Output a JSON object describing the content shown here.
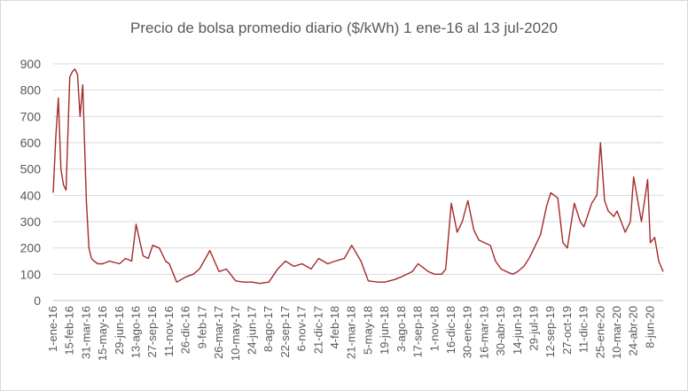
{
  "chart_data": {
    "type": "line",
    "title": "Precio de bolsa promedio diario ($/kWh) 1 ene-16 al 13 jul-2020",
    "xlabel": "",
    "ylabel": "",
    "ylim": [
      0,
      900
    ],
    "yticks": [
      0,
      100,
      200,
      300,
      400,
      500,
      600,
      700,
      800,
      900
    ],
    "grid": "horizontal",
    "legend": "none",
    "line_color": "#a52a2a",
    "x_tick_labels": [
      "1-ene-16",
      "15-feb-16",
      "31-mar-16",
      "15-may-16",
      "29-jun-16",
      "13-ago-16",
      "27-sep-16",
      "11-nov-16",
      "26-dic-16",
      "9-feb-17",
      "26-mar-17",
      "10-may-17",
      "24-jun-17",
      "8-ago-17",
      "22-sep-17",
      "6-nov-17",
      "21-dic-17",
      "4-feb-18",
      "21-mar-18",
      "5-may-18",
      "19-jun-18",
      "3-ago-18",
      "17-sep-18",
      "1-nov-18",
      "16-dic-18",
      "30-ene-19",
      "16-mar-19",
      "30-abr-19",
      "14-jun-19",
      "29-jul-19",
      "12-sep-19",
      "27-oct-19",
      "11-dic-19",
      "25-ene-20",
      "10-mar-20",
      "24-abr-20",
      "8-jun-20"
    ],
    "series": [
      {
        "x": [
          "1-ene-16",
          "8-ene-16",
          "15-ene-16",
          "22-ene-16",
          "29-ene-16",
          "5-feb-16",
          "15-feb-16",
          "22-feb-16",
          "29-feb-16",
          "7-mar-16",
          "14-mar-16",
          "21-mar-16",
          "31-mar-16",
          "7-abr-16",
          "14-abr-16",
          "21-abr-16",
          "1-may-16",
          "15-may-16",
          "1-jun-16",
          "15-jun-16",
          "29-jun-16",
          "15-jul-16",
          "1-ago-16",
          "13-ago-16",
          "1-sep-16",
          "15-sep-16",
          "27-sep-16",
          "15-oct-16",
          "1-nov-16",
          "11-nov-16",
          "1-dic-16",
          "26-dic-16",
          "15-ene-17",
          "1-feb-17",
          "9-feb-17",
          "1-mar-17",
          "26-mar-17",
          "15-abr-17",
          "10-may-17",
          "1-jun-17",
          "24-jun-17",
          "15-jul-17",
          "8-ago-17",
          "1-sep-17",
          "22-sep-17",
          "15-oct-17",
          "6-nov-17",
          "1-dic-17",
          "21-dic-17",
          "15-ene-18",
          "4-feb-18",
          "1-mar-18",
          "21-mar-18",
          "15-abr-18",
          "5-may-18",
          "1-jun-18",
          "19-jun-18",
          "15-jul-18",
          "3-ago-18",
          "1-sep-18",
          "17-sep-18",
          "15-oct-18",
          "1-nov-18",
          "20-nov-18",
          "1-dic-18",
          "16-dic-18",
          "1-ene-19",
          "15-ene-19",
          "30-ene-19",
          "15-feb-19",
          "1-mar-19",
          "16-mar-19",
          "1-abr-19",
          "15-abr-19",
          "30-abr-19",
          "15-may-19",
          "1-jun-19",
          "14-jun-19",
          "1-jul-19",
          "15-jul-19",
          "29-jul-19",
          "15-ago-19",
          "1-sep-19",
          "12-sep-19",
          "1-oct-19",
          "15-oct-19",
          "27-oct-19",
          "15-nov-19",
          "1-dic-19",
          "11-dic-19",
          "1-ene-20",
          "15-ene-20",
          "25-ene-20",
          "5-feb-20",
          "15-feb-20",
          "1-mar-20",
          "10-mar-20",
          "1-abr-20",
          "15-abr-20",
          "24-abr-20",
          "15-may-20",
          "1-jun-20",
          "8-jun-20",
          "20-jun-20",
          "1-jul-20",
          "13-jul-20"
        ],
        "values": [
          410,
          620,
          770,
          500,
          440,
          420,
          850,
          870,
          880,
          860,
          700,
          820,
          380,
          200,
          160,
          150,
          140,
          140,
          150,
          145,
          140,
          160,
          150,
          290,
          170,
          160,
          210,
          200,
          150,
          140,
          70,
          90,
          100,
          120,
          140,
          190,
          110,
          120,
          75,
          70,
          70,
          65,
          70,
          120,
          150,
          130,
          140,
          120,
          160,
          140,
          150,
          160,
          210,
          150,
          75,
          70,
          70,
          80,
          90,
          110,
          140,
          110,
          100,
          100,
          120,
          370,
          260,
          300,
          380,
          270,
          230,
          220,
          210,
          150,
          120,
          110,
          100,
          110,
          130,
          160,
          200,
          250,
          360,
          410,
          390,
          220,
          200,
          370,
          300,
          280,
          370,
          400,
          600,
          380,
          340,
          320,
          340,
          260,
          300,
          470,
          300,
          460,
          220,
          240,
          150,
          110
        ]
      }
    ]
  }
}
